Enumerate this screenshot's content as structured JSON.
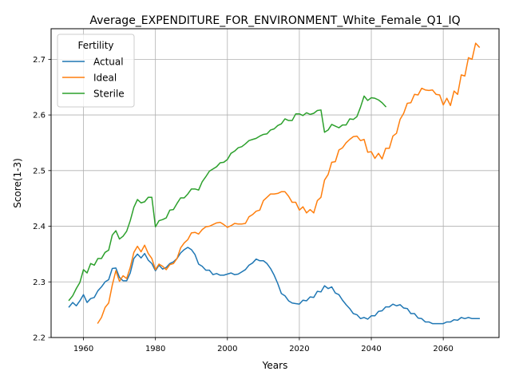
{
  "chart_data": {
    "type": "line",
    "title": "Average_EXPENDITURE_FOR_ENVIRONMENT_White_Female_Q1_IQ",
    "xlabel": "Years",
    "ylabel": "Score(1-3)",
    "xlim": [
      1951,
      2075.5
    ],
    "ylim": [
      2.2,
      2.755
    ],
    "xticks": [
      1960,
      1980,
      2000,
      2020,
      2040,
      2060
    ],
    "xtick_labels": [
      "1960",
      "1980",
      "2000",
      "2020",
      "2040",
      "2060"
    ],
    "yticks": [
      2.2,
      2.3,
      2.4,
      2.5,
      2.6,
      2.7
    ],
    "ytick_labels": [
      "2.2",
      "2.3",
      "2.4",
      "2.5",
      "2.6",
      "2.7"
    ],
    "grid": true,
    "legend": {
      "title": "Fertility",
      "placement": "upper-left"
    },
    "series": [
      {
        "name": "Actual",
        "color": "#1f77b4",
        "x": [
          1956,
          1957,
          1958,
          1959,
          1960,
          1961,
          1962,
          1963,
          1964,
          1965,
          1966,
          1967,
          1968,
          1969,
          1970,
          1971,
          1972,
          1973,
          1974,
          1975,
          1976,
          1977,
          1978,
          1979,
          1980,
          1981,
          1982,
          1983,
          1984,
          1985,
          1986,
          1987,
          1988,
          1989,
          1990,
          1991,
          1992,
          1993,
          1994,
          1995,
          1996,
          1997,
          1998,
          1999,
          2000,
          2001,
          2002,
          2003,
          2004,
          2005,
          2006,
          2007,
          2008,
          2009,
          2010,
          2011,
          2012,
          2013,
          2014,
          2015,
          2016,
          2017,
          2018,
          2019,
          2020,
          2021,
          2022,
          2023,
          2024,
          2025,
          2026,
          2027,
          2028,
          2029,
          2030,
          2031,
          2032,
          2033,
          2034,
          2035,
          2036,
          2037,
          2038,
          2039,
          2040,
          2041,
          2042,
          2043,
          2044,
          2045,
          2046,
          2047,
          2048,
          2049,
          2050,
          2051,
          2052,
          2053,
          2054,
          2055,
          2056,
          2057,
          2058,
          2059,
          2060,
          2061,
          2062,
          2063,
          2064,
          2065,
          2066,
          2067,
          2068,
          2069,
          2070
        ],
        "y": [
          2.255,
          2.263,
          2.257,
          2.266,
          2.277,
          2.263,
          2.27,
          2.272,
          2.284,
          2.291,
          2.3,
          2.304,
          2.324,
          2.325,
          2.308,
          2.302,
          2.302,
          2.316,
          2.342,
          2.35,
          2.343,
          2.351,
          2.339,
          2.333,
          2.32,
          2.33,
          2.323,
          2.326,
          2.333,
          2.336,
          2.342,
          2.352,
          2.358,
          2.362,
          2.358,
          2.349,
          2.332,
          2.328,
          2.321,
          2.321,
          2.313,
          2.315,
          2.312,
          2.312,
          2.314,
          2.316,
          2.313,
          2.314,
          2.318,
          2.322,
          2.33,
          2.334,
          2.341,
          2.338,
          2.338,
          2.333,
          2.324,
          2.312,
          2.297,
          2.279,
          2.275,
          2.266,
          2.262,
          2.261,
          2.26,
          2.267,
          2.266,
          2.273,
          2.272,
          2.283,
          2.282,
          2.293,
          2.288,
          2.291,
          2.28,
          2.277,
          2.267,
          2.259,
          2.252,
          2.243,
          2.241,
          2.234,
          2.236,
          2.233,
          2.239,
          2.239,
          2.247,
          2.248,
          2.255,
          2.255,
          2.26,
          2.257,
          2.259,
          2.253,
          2.252,
          2.243,
          2.243,
          2.235,
          2.234,
          2.228,
          2.228,
          2.225,
          2.225,
          2.225,
          2.225,
          2.228,
          2.228,
          2.232,
          2.231,
          2.236,
          2.234,
          2.236,
          2.234,
          2.234,
          2.234
        ]
      },
      {
        "name": "Ideal",
        "color": "#ff7f0e",
        "x": [
          1964,
          1965,
          1966,
          1967,
          1968,
          1969,
          1970,
          1971,
          1972,
          1973,
          1974,
          1975,
          1976,
          1977,
          1978,
          1979,
          1980,
          1981,
          1982,
          1983,
          1984,
          1985,
          1986,
          1987,
          1988,
          1989,
          1990,
          1991,
          1992,
          1993,
          1994,
          1995,
          1996,
          1997,
          1998,
          1999,
          2000,
          2001,
          2002,
          2003,
          2004,
          2005,
          2006,
          2007,
          2008,
          2009,
          2010,
          2011,
          2012,
          2013,
          2014,
          2015,
          2016,
          2017,
          2018,
          2019,
          2020,
          2021,
          2022,
          2023,
          2024,
          2025,
          2026,
          2027,
          2028,
          2029,
          2030,
          2031,
          2032,
          2033,
          2034,
          2035,
          2036,
          2037,
          2038,
          2039,
          2040,
          2041,
          2042,
          2043,
          2044,
          2045,
          2046,
          2047,
          2048,
          2049,
          2050,
          2051,
          2052,
          2053,
          2054,
          2055,
          2056,
          2057,
          2058,
          2059,
          2060,
          2061,
          2062,
          2063,
          2064,
          2065,
          2066,
          2067,
          2068,
          2069,
          2070
        ],
        "y": [
          2.226,
          2.236,
          2.254,
          2.262,
          2.294,
          2.32,
          2.301,
          2.311,
          2.306,
          2.326,
          2.353,
          2.364,
          2.354,
          2.366,
          2.351,
          2.342,
          2.322,
          2.332,
          2.328,
          2.322,
          2.331,
          2.333,
          2.342,
          2.361,
          2.37,
          2.376,
          2.388,
          2.389,
          2.386,
          2.394,
          2.399,
          2.4,
          2.403,
          2.406,
          2.407,
          2.403,
          2.398,
          2.401,
          2.405,
          2.404,
          2.404,
          2.405,
          2.417,
          2.421,
          2.427,
          2.429,
          2.446,
          2.452,
          2.458,
          2.458,
          2.459,
          2.462,
          2.462,
          2.454,
          2.443,
          2.443,
          2.429,
          2.435,
          2.424,
          2.43,
          2.424,
          2.446,
          2.452,
          2.483,
          2.493,
          2.515,
          2.516,
          2.537,
          2.541,
          2.55,
          2.556,
          2.561,
          2.562,
          2.554,
          2.556,
          2.533,
          2.534,
          2.522,
          2.531,
          2.521,
          2.54,
          2.54,
          2.562,
          2.567,
          2.592,
          2.603,
          2.621,
          2.622,
          2.637,
          2.636,
          2.648,
          2.645,
          2.644,
          2.645,
          2.637,
          2.636,
          2.618,
          2.63,
          2.617,
          2.643,
          2.637,
          2.672,
          2.67,
          2.703,
          2.7,
          2.729,
          2.722
        ]
      },
      {
        "name": "Sterile",
        "color": "#2ca02c",
        "x": [
          1956,
          1957,
          1958,
          1959,
          1960,
          1961,
          1962,
          1963,
          1964,
          1965,
          1966,
          1967,
          1968,
          1969,
          1970,
          1971,
          1972,
          1973,
          1974,
          1975,
          1976,
          1977,
          1978,
          1979,
          1980,
          1981,
          1982,
          1983,
          1984,
          1985,
          1986,
          1987,
          1988,
          1989,
          1990,
          1991,
          1992,
          1993,
          1994,
          1995,
          1996,
          1997,
          1998,
          1999,
          2000,
          2001,
          2002,
          2003,
          2004,
          2005,
          2006,
          2007,
          2008,
          2009,
          2010,
          2011,
          2012,
          2013,
          2014,
          2015,
          2016,
          2017,
          2018,
          2019,
          2020,
          2021,
          2022,
          2023,
          2024,
          2025,
          2026,
          2027,
          2028,
          2029,
          2030,
          2031,
          2032,
          2033,
          2034,
          2035,
          2036,
          2037,
          2038,
          2039,
          2040,
          2041,
          2042,
          2043,
          2044
        ],
        "y": [
          2.267,
          2.275,
          2.288,
          2.299,
          2.322,
          2.316,
          2.333,
          2.33,
          2.342,
          2.342,
          2.353,
          2.357,
          2.384,
          2.392,
          2.377,
          2.382,
          2.391,
          2.41,
          2.434,
          2.448,
          2.442,
          2.444,
          2.452,
          2.452,
          2.399,
          2.41,
          2.412,
          2.415,
          2.429,
          2.43,
          2.441,
          2.451,
          2.451,
          2.458,
          2.467,
          2.467,
          2.465,
          2.48,
          2.489,
          2.499,
          2.503,
          2.507,
          2.514,
          2.515,
          2.52,
          2.531,
          2.535,
          2.541,
          2.543,
          2.548,
          2.554,
          2.556,
          2.558,
          2.562,
          2.565,
          2.566,
          2.573,
          2.575,
          2.581,
          2.584,
          2.593,
          2.59,
          2.59,
          2.602,
          2.602,
          2.599,
          2.604,
          2.601,
          2.603,
          2.608,
          2.609,
          2.569,
          2.573,
          2.583,
          2.58,
          2.577,
          2.582,
          2.582,
          2.593,
          2.592,
          2.597,
          2.614,
          2.634,
          2.626,
          2.631,
          2.63,
          2.627,
          2.622,
          2.615
        ]
      }
    ]
  }
}
